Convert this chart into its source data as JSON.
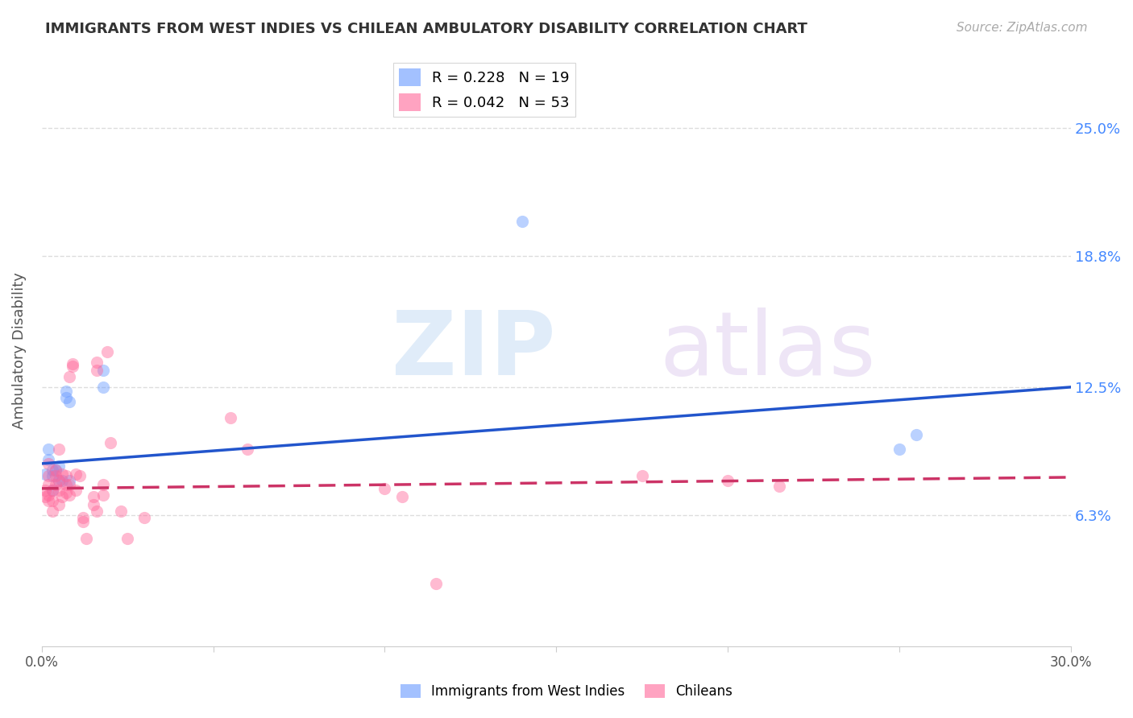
{
  "title": "IMMIGRANTS FROM WEST INDIES VS CHILEAN AMBULATORY DISABILITY CORRELATION CHART",
  "source": "Source: ZipAtlas.com",
  "ylabel": "Ambulatory Disability",
  "xlim": [
    0.0,
    0.3
  ],
  "ylim": [
    0.0,
    0.285
  ],
  "ytick_labels": [
    "6.3%",
    "12.5%",
    "18.8%",
    "25.0%"
  ],
  "ytick_values": [
    0.063,
    0.125,
    0.188,
    0.25
  ],
  "xtick_values": [
    0.0,
    0.05,
    0.1,
    0.15,
    0.2,
    0.25,
    0.3
  ],
  "xtick_labels": [
    "0.0%",
    "",
    "",
    "",
    "",
    "",
    "30.0%"
  ],
  "legend1_label": "R = 0.228   N = 19",
  "legend2_label": "R = 0.042   N = 53",
  "legend1_color": "#6699ff",
  "legend2_color": "#ff6699",
  "blue_scatter_x": [
    0.001,
    0.002,
    0.002,
    0.003,
    0.003,
    0.004,
    0.005,
    0.005,
    0.006,
    0.007,
    0.007,
    0.008,
    0.008,
    0.018,
    0.018,
    0.14,
    0.25,
    0.255,
    0.003
  ],
  "blue_scatter_y": [
    0.083,
    0.09,
    0.095,
    0.082,
    0.085,
    0.085,
    0.08,
    0.087,
    0.08,
    0.12,
    0.123,
    0.118,
    0.08,
    0.125,
    0.133,
    0.205,
    0.095,
    0.102,
    0.075
  ],
  "pink_scatter_x": [
    0.001,
    0.001,
    0.002,
    0.002,
    0.002,
    0.002,
    0.002,
    0.003,
    0.003,
    0.003,
    0.004,
    0.004,
    0.004,
    0.005,
    0.005,
    0.005,
    0.005,
    0.006,
    0.006,
    0.007,
    0.007,
    0.007,
    0.008,
    0.008,
    0.008,
    0.009,
    0.009,
    0.01,
    0.01,
    0.011,
    0.012,
    0.012,
    0.013,
    0.015,
    0.015,
    0.016,
    0.016,
    0.016,
    0.018,
    0.018,
    0.019,
    0.02,
    0.023,
    0.025,
    0.03,
    0.055,
    0.06,
    0.1,
    0.105,
    0.115,
    0.175,
    0.2,
    0.215
  ],
  "pink_scatter_y": [
    0.072,
    0.075,
    0.07,
    0.073,
    0.078,
    0.082,
    0.088,
    0.065,
    0.07,
    0.075,
    0.078,
    0.082,
    0.085,
    0.068,
    0.075,
    0.08,
    0.095,
    0.072,
    0.083,
    0.074,
    0.078,
    0.082,
    0.073,
    0.078,
    0.13,
    0.135,
    0.136,
    0.075,
    0.083,
    0.082,
    0.06,
    0.062,
    0.052,
    0.068,
    0.072,
    0.065,
    0.137,
    0.133,
    0.073,
    0.078,
    0.142,
    0.098,
    0.065,
    0.052,
    0.062,
    0.11,
    0.095,
    0.076,
    0.072,
    0.03,
    0.082,
    0.08,
    0.077
  ],
  "blue_line_x": [
    0.0,
    0.3
  ],
  "blue_line_y_intercept": 0.088,
  "blue_line_slope": 0.123,
  "pink_line_y_intercept": 0.076,
  "pink_line_slope": 0.018,
  "scatter_size": 120,
  "scatter_alpha": 0.45,
  "line_width": 2.5,
  "background_color": "#ffffff",
  "grid_color": "#dddddd",
  "title_color": "#333333",
  "axis_color": "#555555",
  "right_label_color": "#4488ff",
  "legend_bottom_label1": "Immigrants from West Indies",
  "legend_bottom_label2": "Chileans"
}
